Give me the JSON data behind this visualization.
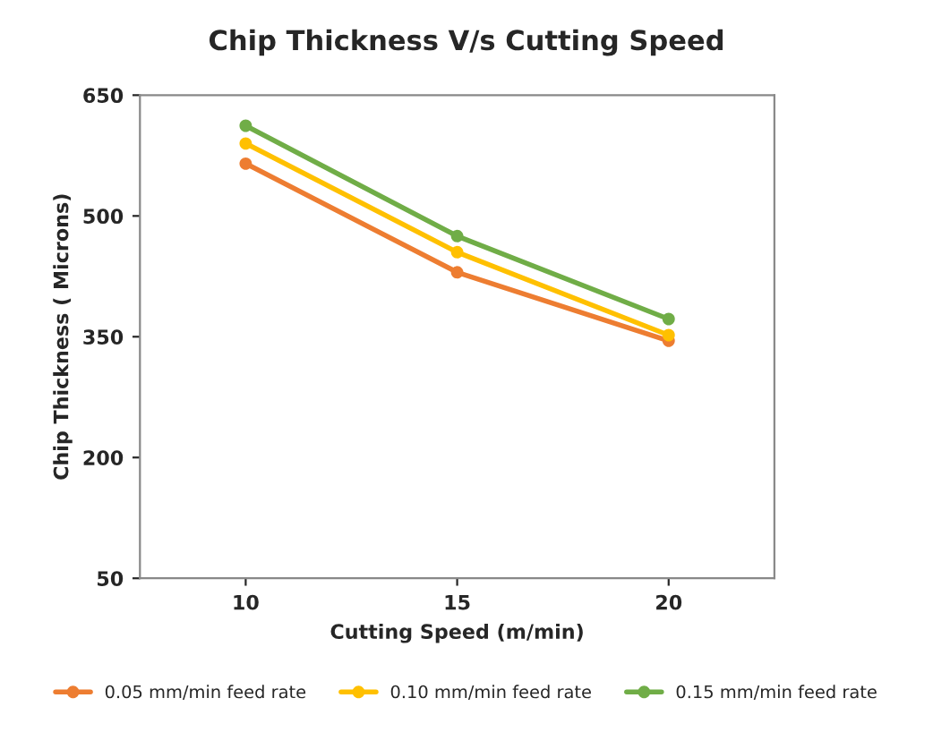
{
  "chart_data": {
    "type": "line",
    "title": "Chip Thickness V/s Cutting Speed",
    "xlabel": "Cutting Speed (m/min)",
    "ylabel": "Chip Thickness ( Microns)",
    "categories": [
      "10",
      "15",
      "20"
    ],
    "series": [
      {
        "name": "0.05 mm/min feed rate",
        "color": "#ed7d31",
        "values": [
          565,
          430,
          345
        ]
      },
      {
        "name": "0.10 mm/min feed rate",
        "color": "#ffc000",
        "values": [
          590,
          455,
          352
        ]
      },
      {
        "name": "0.15 mm/min feed rate",
        "color": "#70ad47",
        "values": [
          612,
          475,
          372
        ]
      }
    ],
    "ylim": [
      50,
      650
    ],
    "yticks": [
      50,
      200,
      350,
      500,
      650
    ],
    "grid": false,
    "legend": "bottom",
    "marker": "circle",
    "line_style": "solid"
  }
}
